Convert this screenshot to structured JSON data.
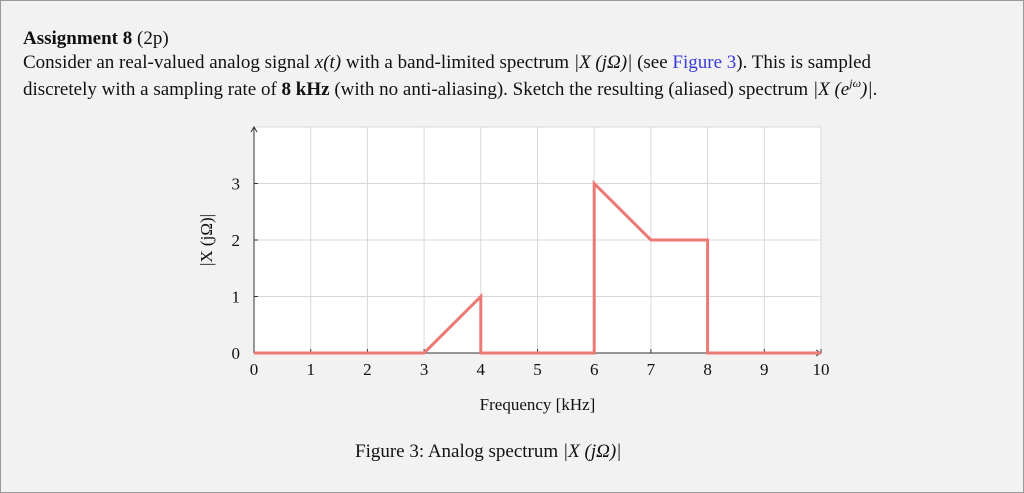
{
  "header": {
    "title": "Assignment 8",
    "points": "(2p)"
  },
  "body": {
    "lines": [
      [
        {
          "text": "Consider an real-valued analog signal ",
          "style": "plain"
        },
        {
          "text": "x(t)",
          "style": "math"
        },
        {
          "text": " with a band-limited spectrum ",
          "style": "plain"
        },
        {
          "text": "|X (jΩ)|",
          "style": "math"
        },
        {
          "text": " (see ",
          "style": "plain"
        },
        {
          "text": "Figure 3",
          "style": "link"
        },
        {
          "text": "). This is sampled",
          "style": "plain"
        }
      ],
      [
        {
          "text": "discretely with a sampling rate of ",
          "style": "plain"
        },
        {
          "text": "8 kHz",
          "style": "bold"
        },
        {
          "text": " (with no anti-aliasing). Sketch the resulting (aliased) spectrum ",
          "style": "plain"
        },
        {
          "text": "|X (e",
          "style": "math"
        },
        {
          "text": "jω",
          "style": "sup"
        },
        {
          "text": ")|",
          "style": "math"
        },
        {
          "text": ".",
          "style": "plain"
        }
      ]
    ]
  },
  "chart_data": {
    "type": "line",
    "x_label": "Frequency [kHz]",
    "y_label": "|X (jΩ)|",
    "x": [
      0,
      3,
      4,
      4,
      6,
      6,
      7,
      8,
      8,
      10
    ],
    "y": [
      0,
      0,
      1,
      0,
      0,
      3,
      2,
      2,
      0,
      0
    ],
    "color": "#ec7a74",
    "xlim": [
      0,
      10
    ],
    "ylim": [
      0,
      4
    ],
    "xticks": [
      0,
      1,
      2,
      3,
      4,
      5,
      6,
      7,
      8,
      9,
      10
    ],
    "yticks": [
      0,
      1,
      2,
      3
    ],
    "grid": true
  },
  "caption": [
    {
      "text": "Figure 3: Analog spectrum ",
      "style": "plain"
    },
    {
      "text": "|X (jΩ)|",
      "style": "math"
    }
  ]
}
